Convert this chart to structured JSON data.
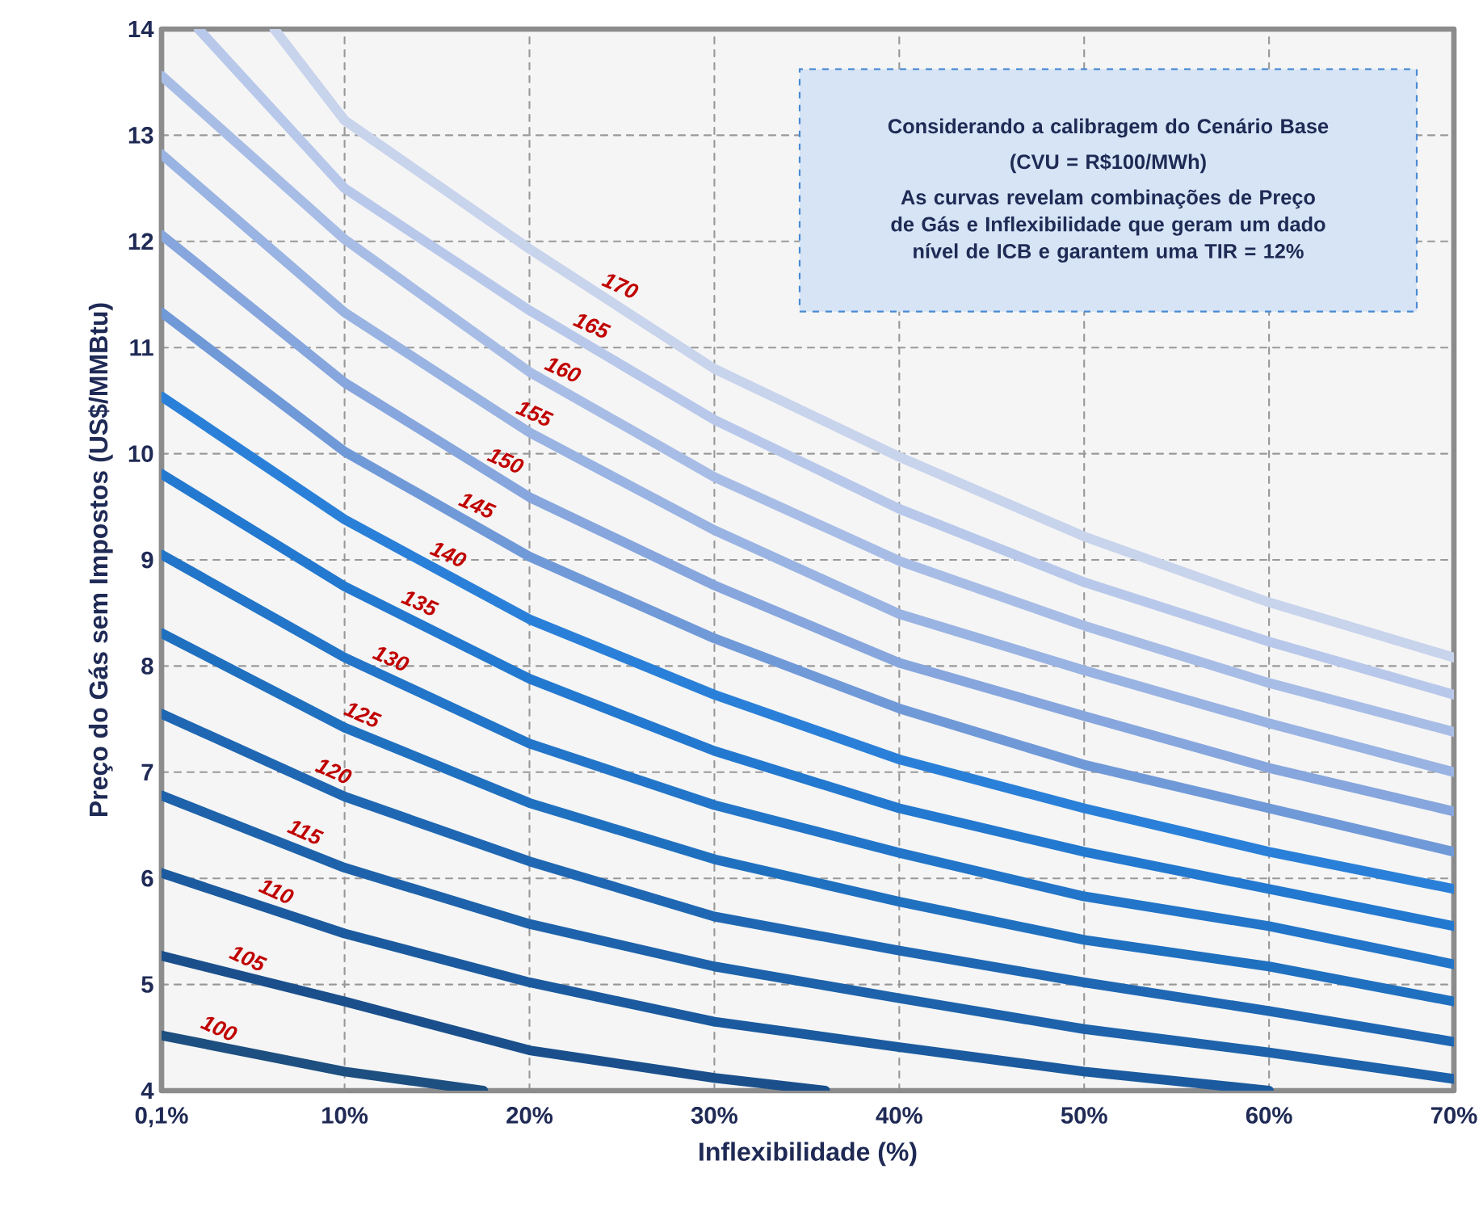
{
  "chart_data": {
    "type": "line",
    "xlabel": "Inflexibilidade (%)",
    "ylabel": "Preço do Gás sem Impostos (US$/MMBtu)",
    "annotations": [
      "Considerando a calibragem do Cenário Base",
      "(CVU = R$100/MWh)",
      "As curvas revelam combinações de Preço de Gás e Inflexibilidade que geram um dado nível de ICB e garantem uma TIR = 12%"
    ],
    "xlim": [
      0.1,
      70
    ],
    "ylim": [
      4,
      14
    ],
    "xticks": [
      {
        "value": 0.1,
        "label": "0,1%"
      },
      {
        "value": 10,
        "label": "10%"
      },
      {
        "value": 20,
        "label": "20%"
      },
      {
        "value": 30,
        "label": "30%"
      },
      {
        "value": 40,
        "label": "40%"
      },
      {
        "value": 50,
        "label": "50%"
      },
      {
        "value": 60,
        "label": "60%"
      },
      {
        "value": 70,
        "label": "70%"
      }
    ],
    "yticks": [
      4,
      5,
      6,
      7,
      8,
      9,
      10,
      11,
      12,
      13,
      14
    ],
    "grid": true,
    "line_style": "solid",
    "marker": "none",
    "series": [
      {
        "name": "100",
        "color": "#1d4f80",
        "x": [
          0.1,
          10,
          17.5
        ],
        "values": [
          4.52,
          4.18,
          4.0
        ]
      },
      {
        "name": "105",
        "color": "#1a4f8c",
        "x": [
          0.1,
          10,
          20,
          30,
          36
        ],
        "values": [
          5.27,
          4.84,
          4.38,
          4.12,
          4.0
        ]
      },
      {
        "name": "110",
        "color": "#1b5a9e",
        "x": [
          0.1,
          10,
          20,
          30,
          40,
          50,
          60
        ],
        "values": [
          6.05,
          5.48,
          5.02,
          4.65,
          4.41,
          4.18,
          4.0
        ]
      },
      {
        "name": "115",
        "color": "#1d62aa",
        "x": [
          0.1,
          10,
          20,
          30,
          40,
          50,
          60,
          70
        ],
        "values": [
          6.78,
          6.1,
          5.57,
          5.17,
          4.87,
          4.58,
          4.36,
          4.11
        ]
      },
      {
        "name": "120",
        "color": "#1f67b3",
        "x": [
          0.1,
          10,
          20,
          30,
          40,
          50,
          60,
          70
        ],
        "values": [
          7.55,
          6.77,
          6.16,
          5.64,
          5.32,
          5.02,
          4.75,
          4.46
        ]
      },
      {
        "name": "125",
        "color": "#2070c0",
        "x": [
          0.1,
          10,
          20,
          30,
          40,
          50,
          60,
          70
        ],
        "values": [
          8.31,
          7.42,
          6.71,
          6.18,
          5.78,
          5.42,
          5.17,
          4.84
        ]
      },
      {
        "name": "130",
        "color": "#2275c8",
        "x": [
          0.1,
          10,
          20,
          30,
          40,
          50,
          60,
          70
        ],
        "values": [
          9.05,
          8.08,
          7.27,
          6.69,
          6.24,
          5.83,
          5.55,
          5.19
        ]
      },
      {
        "name": "135",
        "color": "#2378cf",
        "x": [
          0.1,
          10,
          20,
          30,
          40,
          50,
          60,
          70
        ],
        "values": [
          9.81,
          8.75,
          7.88,
          7.2,
          6.66,
          6.25,
          5.9,
          5.55
        ]
      },
      {
        "name": "140",
        "color": "#2a80d8",
        "x": [
          0.1,
          10,
          20,
          30,
          40,
          50,
          60,
          70
        ],
        "values": [
          10.54,
          9.38,
          8.44,
          7.73,
          7.12,
          6.66,
          6.25,
          5.9
        ]
      },
      {
        "name": "145",
        "color": "#7099d8",
        "x": [
          0.1,
          10,
          20,
          30,
          40,
          50,
          60,
          70
        ],
        "values": [
          11.33,
          10.02,
          9.03,
          8.26,
          7.6,
          7.07,
          6.66,
          6.25
        ]
      },
      {
        "name": "150",
        "color": "#86a6dd",
        "x": [
          0.1,
          10,
          20,
          30,
          40,
          50,
          60,
          70
        ],
        "values": [
          12.06,
          10.67,
          9.59,
          8.76,
          8.03,
          7.53,
          7.04,
          6.63
        ]
      },
      {
        "name": "155",
        "color": "#99b3e2",
        "x": [
          0.1,
          10,
          20,
          30,
          40,
          50,
          60,
          70
        ],
        "values": [
          12.82,
          11.33,
          10.2,
          9.28,
          8.49,
          7.96,
          7.46,
          7.0
        ]
      },
      {
        "name": "160",
        "color": "#a8bde6",
        "x": [
          0.1,
          10,
          20,
          30,
          40,
          50,
          60,
          70
        ],
        "values": [
          13.56,
          12.02,
          10.77,
          9.78,
          8.99,
          8.38,
          7.84,
          7.38
        ]
      },
      {
        "name": "165",
        "color": "#b8c8ea",
        "x": [
          2.1,
          10,
          20,
          30,
          40,
          50,
          60,
          70
        ],
        "values": [
          14,
          12.5,
          11.35,
          10.32,
          9.48,
          8.79,
          8.23,
          7.73
        ]
      },
      {
        "name": "170",
        "color": "#c8d3ec",
        "x": [
          6.2,
          10,
          20,
          30,
          40,
          50,
          60,
          70
        ],
        "values": [
          14,
          13.14,
          11.93,
          10.8,
          9.97,
          9.22,
          8.6,
          8.08
        ]
      }
    ]
  }
}
